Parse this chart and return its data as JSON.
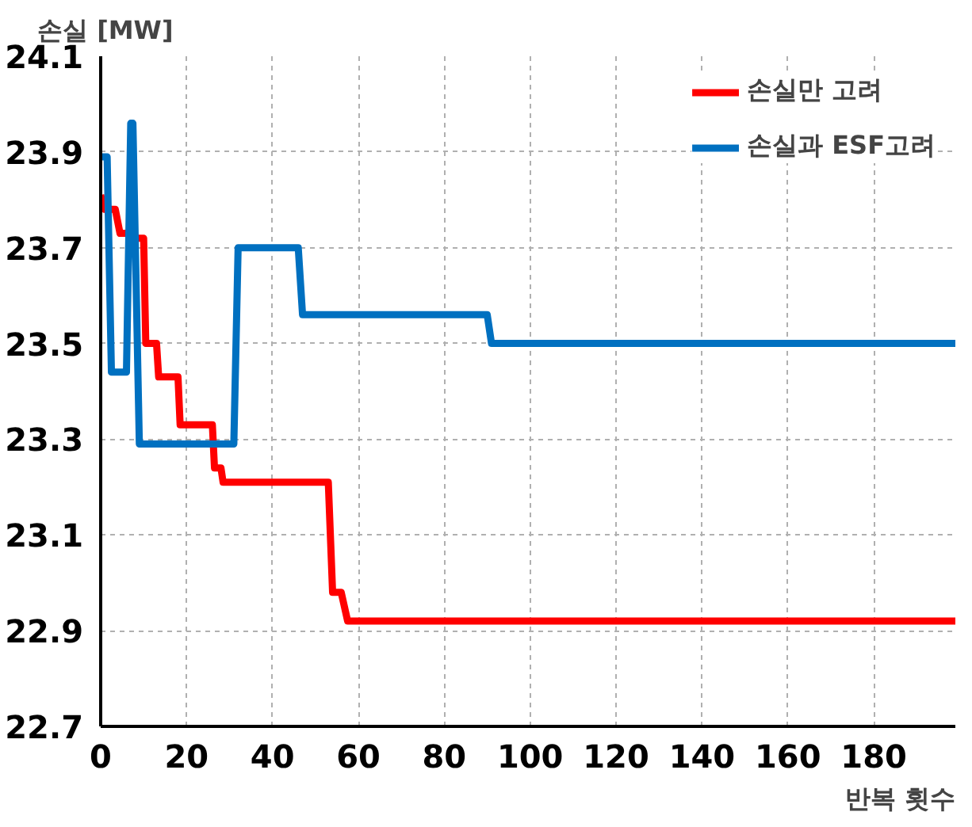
{
  "chart_data": {
    "type": "line",
    "xlabel": "반복 횟수",
    "ylabel": "손실 [MW]",
    "series": [
      {
        "name": "손실만 고려",
        "color": "#ff0000",
        "x": [
          0,
          1,
          3.4,
          4.5,
          7,
          7.5,
          10,
          10.5,
          13,
          13.5,
          18,
          18.5,
          26,
          26.5,
          28,
          28.5,
          53,
          54,
          56,
          57.5,
          199
        ],
        "values": [
          23.81,
          23.78,
          23.78,
          23.73,
          23.73,
          23.72,
          23.72,
          23.5,
          23.5,
          23.43,
          23.43,
          23.33,
          23.33,
          23.24,
          23.24,
          23.21,
          23.21,
          22.98,
          22.98,
          22.92,
          22.92
        ]
      },
      {
        "name": "손실과 ESF고려",
        "color": "#0070c0",
        "x": [
          0,
          1.5,
          2.5,
          6,
          7,
          7.5,
          9,
          31,
          32,
          46,
          47,
          90,
          91,
          199
        ],
        "values": [
          23.89,
          23.89,
          23.44,
          23.44,
          23.96,
          23.96,
          23.29,
          23.29,
          23.7,
          23.7,
          23.56,
          23.56,
          23.5,
          23.5
        ]
      }
    ],
    "xlim": [
      0,
      199
    ],
    "xticks": [
      0,
      20,
      40,
      60,
      80,
      100,
      120,
      140,
      160,
      180
    ],
    "ylim": [
      22.7,
      24.1
    ],
    "yticks": [
      22.7,
      22.9,
      23.1,
      23.3,
      23.5,
      23.7,
      23.9,
      24.1
    ],
    "grid": true,
    "legend": "top right",
    "line_style": "solid",
    "marker": "none"
  }
}
